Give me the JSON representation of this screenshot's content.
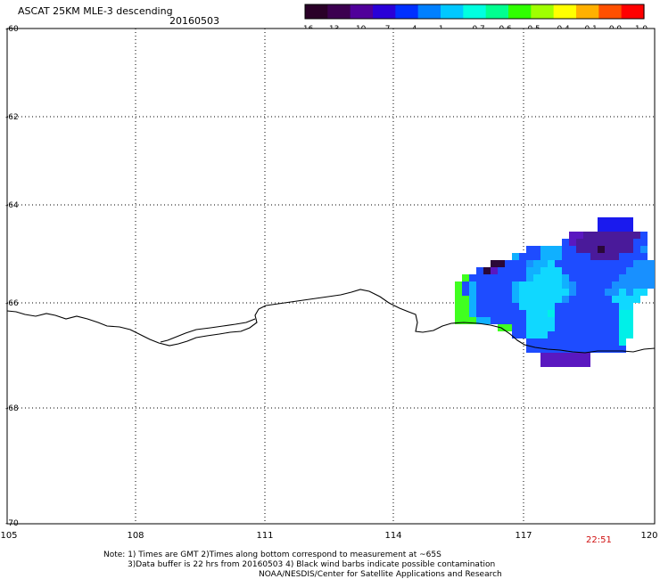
{
  "header": {
    "title": "ASCAT 25KM MLE-3 descending",
    "date": "20160503"
  },
  "colorbar": {
    "labels": [
      "-16",
      "-13",
      "-10",
      "-7",
      "-4",
      "-1",
      "-0.7",
      "-0.6",
      "-0.5",
      "-0.4",
      "-0.1",
      "0.0",
      "1.0"
    ],
    "colors": [
      "#2a0028",
      "#3c0050",
      "#50009a",
      "#2a00d8",
      "#0030ff",
      "#0080ff",
      "#00c8ff",
      "#00ffe0",
      "#00ff90",
      "#30ff00",
      "#a0ff00",
      "#ffff00",
      "#ffb000",
      "#ff5000",
      "#ff0000"
    ]
  },
  "map": {
    "lat_labels": [
      "-60",
      "-62",
      "-64",
      "-66",
      "-68",
      "-70"
    ],
    "lon_labels": [
      "105",
      "108",
      "111",
      "114",
      "117",
      "120"
    ],
    "time_label": "22:51",
    "time_color": "#d01010"
  },
  "notes": {
    "line1": "Note: 1) Times are GMT 2)Times along bottom correspond to measurement at ~65S",
    "line2": "3)Data buffer is 22 hrs from 20160503 4) Black wind barbs indicate possible contamination",
    "line3": "NOAA/NESDIS/Center for Satellite Applications and Research"
  }
}
